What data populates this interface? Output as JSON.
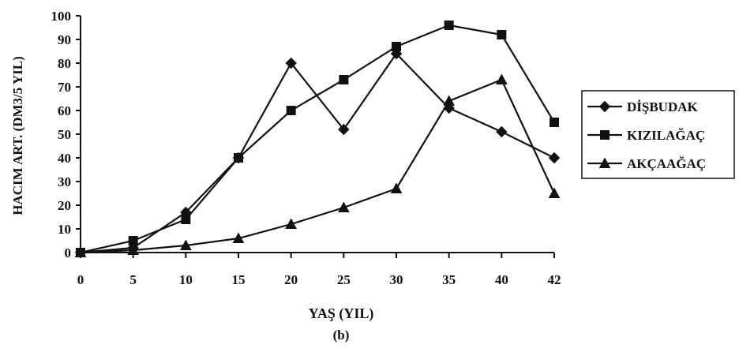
{
  "chart_data": {
    "type": "line",
    "title": "",
    "caption": "(b)",
    "xlabel": "YAŞ (YIL)",
    "ylabel": "HACIM ART.  (DM3/5 YIL)",
    "x": [
      0,
      5,
      10,
      15,
      20,
      25,
      30,
      35,
      40,
      42
    ],
    "x_tick_labels": [
      "0",
      "5",
      "10",
      "15",
      "20",
      "25",
      "30",
      "35",
      "40",
      "42"
    ],
    "x_scale": "categorical-evenly-spaced",
    "ylim": [
      0,
      100
    ],
    "y_ticks": [
      0,
      10,
      20,
      30,
      40,
      50,
      60,
      70,
      80,
      90,
      100
    ],
    "grid": false,
    "legend_position": "right",
    "series": [
      {
        "name": "DİŞBUDAK",
        "marker": "diamond",
        "values": [
          0,
          2,
          17,
          40,
          80,
          52,
          84,
          61,
          51,
          40
        ]
      },
      {
        "name": "KIZILAĞAÇ",
        "marker": "square",
        "values": [
          0,
          5,
          14,
          40,
          60,
          73,
          87,
          96,
          92,
          55
        ]
      },
      {
        "name": "AKÇAAĞAÇ",
        "marker": "triangle",
        "values": [
          0,
          1,
          3,
          6,
          12,
          19,
          27,
          64,
          73,
          25
        ]
      }
    ]
  }
}
